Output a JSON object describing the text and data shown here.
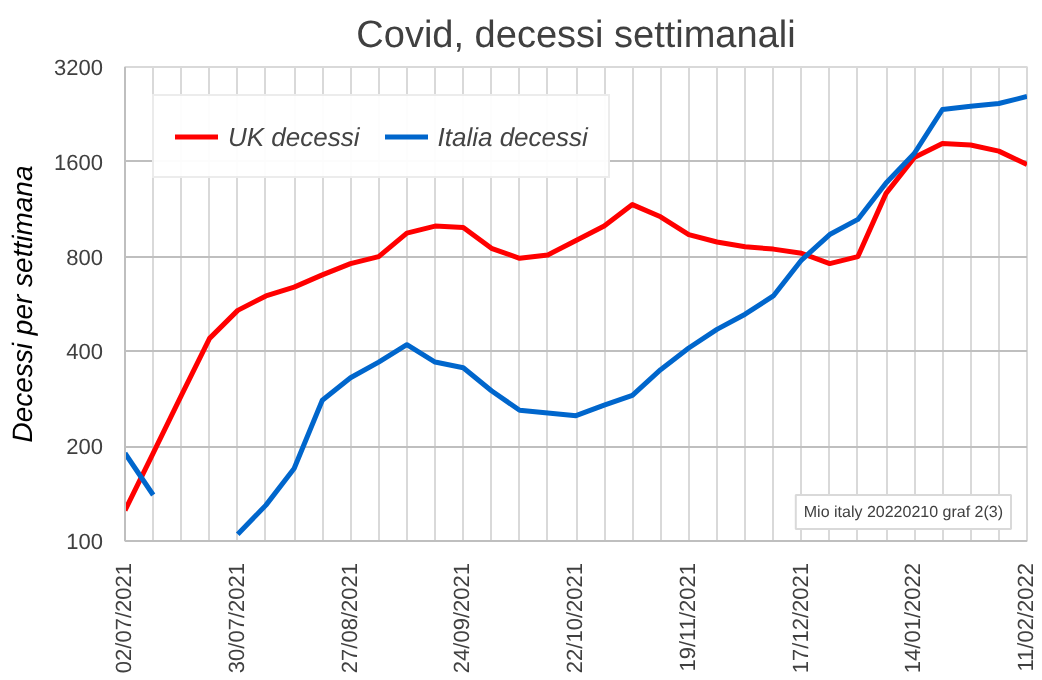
{
  "chart_data": {
    "type": "line",
    "title": "Covid, decessi settimanali",
    "ylabel": "Decessi per settimana",
    "x": [
      "2021-07-02",
      "2021-07-09",
      "2021-07-16",
      "2021-07-23",
      "2021-07-30",
      "2021-08-06",
      "2021-08-13",
      "2021-08-20",
      "2021-08-27",
      "2021-09-03",
      "2021-09-10",
      "2021-09-17",
      "2021-09-24",
      "2021-10-01",
      "2021-10-08",
      "2021-10-15",
      "2021-10-22",
      "2021-10-29",
      "2021-11-05",
      "2021-11-12",
      "2021-11-19",
      "2021-11-26",
      "2021-12-03",
      "2021-12-10",
      "2021-12-17",
      "2021-12-24",
      "2021-12-31",
      "2022-01-07",
      "2022-01-14",
      "2022-01-21",
      "2022-01-28",
      "2022-02-04",
      "2022-02-11"
    ],
    "series": [
      {
        "name": "UK decessi",
        "color": "#ff0000",
        "values": [
          125,
          190,
          290,
          440,
          540,
          600,
          640,
          700,
          760,
          800,
          950,
          1000,
          990,
          850,
          790,
          810,
          900,
          1000,
          1170,
          1070,
          940,
          890,
          860,
          845,
          820,
          760,
          800,
          1270,
          1650,
          1830,
          1810,
          1730,
          1570
        ]
      },
      {
        "name": "Italia decessi",
        "color": "#0066cc",
        "values": [
          190,
          140,
          null,
          null,
          105,
          130,
          170,
          280,
          330,
          370,
          420,
          370,
          355,
          300,
          260,
          255,
          250,
          270,
          290,
          350,
          410,
          470,
          525,
          600,
          780,
          940,
          1050,
          1370,
          1700,
          2345,
          2400,
          2450,
          2580
        ]
      }
    ],
    "log": true,
    "ylim": [
      100,
      3200
    ],
    "yticks": [
      100,
      200,
      400,
      800,
      1600,
      3200
    ],
    "xlim": [
      "2021-07-02",
      "2022-02-11"
    ],
    "xticks": [
      {
        "value": "2021-07-02",
        "label": "02/07/2021"
      },
      {
        "value": "2021-07-09",
        "label": null
      },
      {
        "value": "2021-07-16",
        "label": null
      },
      {
        "value": "2021-07-23",
        "label": null
      },
      {
        "value": "2021-07-30",
        "label": "30/07/2021"
      },
      {
        "value": "2021-08-06",
        "label": null
      },
      {
        "value": "2021-08-13",
        "label": null
      },
      {
        "value": "2021-08-20",
        "label": null
      },
      {
        "value": "2021-08-27",
        "label": "27/08/2021"
      },
      {
        "value": "2021-09-03",
        "label": null
      },
      {
        "value": "2021-09-10",
        "label": null
      },
      {
        "value": "2021-09-17",
        "label": null
      },
      {
        "value": "2021-09-24",
        "label": "24/09/2021"
      },
      {
        "value": "2021-10-01",
        "label": null
      },
      {
        "value": "2021-10-08",
        "label": null
      },
      {
        "value": "2021-10-15",
        "label": null
      },
      {
        "value": "2021-10-22",
        "label": "22/10/2021"
      },
      {
        "value": "2021-10-29",
        "label": null
      },
      {
        "value": "2021-11-05",
        "label": null
      },
      {
        "value": "2021-11-12",
        "label": null
      },
      {
        "value": "2021-11-19",
        "label": "19/11/2021"
      },
      {
        "value": "2021-11-26",
        "label": null
      },
      {
        "value": "2021-12-03",
        "label": null
      },
      {
        "value": "2021-12-10",
        "label": null
      },
      {
        "value": "2021-12-17",
        "label": "17/12/2021"
      },
      {
        "value": "2021-12-24",
        "label": null
      },
      {
        "value": "2021-12-31",
        "label": null
      },
      {
        "value": "2022-01-07",
        "label": null
      },
      {
        "value": "2022-01-14",
        "label": "14/01/2022"
      },
      {
        "value": "2022-01-21",
        "label": null
      },
      {
        "value": "2022-01-28",
        "label": null
      },
      {
        "value": "2022-02-04",
        "label": null
      },
      {
        "value": "2022-02-11",
        "label": "11/02/2022"
      }
    ],
    "grid": true,
    "legend": "top left",
    "marker": "none",
    "line_style": "solid",
    "annotations": [
      "Mio italy 20220210 graf 2(3)"
    ]
  }
}
